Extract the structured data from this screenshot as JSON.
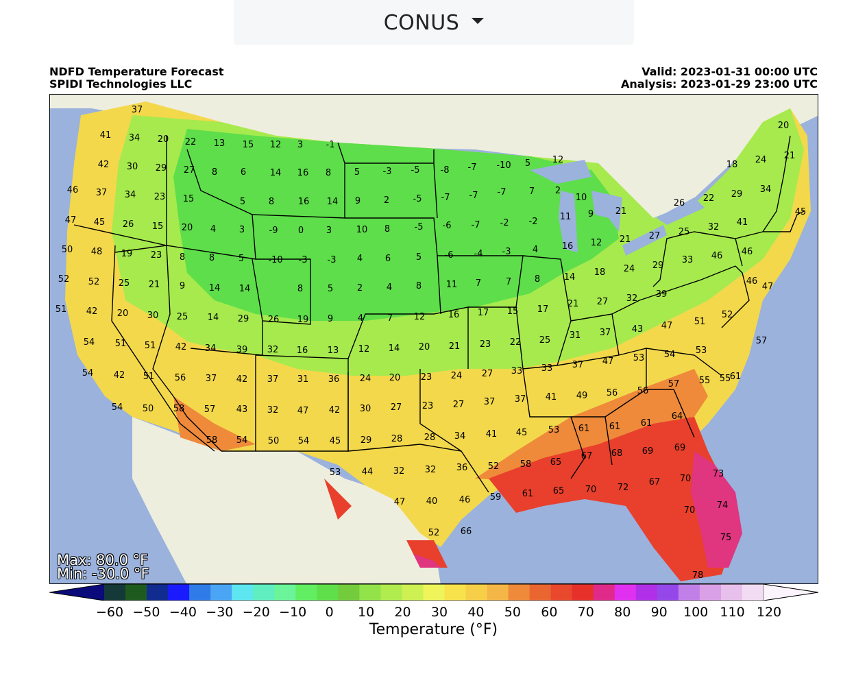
{
  "region_selector": {
    "label": "CONUS"
  },
  "header": {
    "title": "NDFD Temperature Forecast",
    "provider": "SPIDI Technologies LLC",
    "valid": "Valid: 2023-01-31 00:00 UTC",
    "analysis": "Analysis: 2023-01-29 23:00 UTC"
  },
  "stats": {
    "max": "Max: 80.0 °F",
    "min": "Min: -30.0 °F"
  },
  "colorbar": {
    "title": "Temperature (°F)",
    "ticks": [
      "−60",
      "−50",
      "−40",
      "−30",
      "−20",
      "−10",
      "0",
      "10",
      "20",
      "30",
      "40",
      "50",
      "60",
      "70",
      "80",
      "90",
      "100",
      "110",
      "120"
    ],
    "colors": [
      "#0a0a7a",
      "#153838",
      "#1e5a1e",
      "#102c90",
      "#1a1aff",
      "#2f7be8",
      "#4aa6f4",
      "#5ee6f0",
      "#60eec0",
      "#6cf49a",
      "#62ee62",
      "#5fdf4a",
      "#74cc3d",
      "#92e24a",
      "#b0ec4e",
      "#cdf052",
      "#eef45a",
      "#f8e24c",
      "#f6ce48",
      "#f4b646",
      "#ee8a3a",
      "#ea6630",
      "#e8482c",
      "#e6302a",
      "#e02a8a",
      "#e030f0",
      "#b030e8",
      "#9448ea",
      "#c080e8",
      "#daa0e6",
      "#e8c0ec",
      "#f2dcf4",
      "#fcf4fc"
    ],
    "colors_domain": [
      -65,
      120
    ]
  },
  "map_colors": {
    "ocean": "#9ab2dc",
    "land": "#eeeedf",
    "cold_band": "#5dde4a",
    "mid_band": "#a6ea4e",
    "warm_band": "#f3d84c",
    "hot_band": "#ee8a3a",
    "hottest_band": "#e8402c",
    "gulf_band": "#e0357f"
  },
  "points": [
    {
      "t": "37"
    },
    {
      "t": "41"
    },
    {
      "t": "34"
    },
    {
      "t": "20"
    },
    {
      "t": "22"
    },
    {
      "t": "13"
    },
    {
      "t": "15"
    },
    {
      "t": "12"
    },
    {
      "t": "3"
    },
    {
      "t": "-1"
    },
    {
      "t": "42"
    },
    {
      "t": "30"
    },
    {
      "t": "29"
    },
    {
      "t": "27"
    },
    {
      "t": "8"
    },
    {
      "t": "6"
    },
    {
      "t": "14"
    },
    {
      "t": "16"
    },
    {
      "t": "8"
    },
    {
      "t": "5"
    },
    {
      "t": "-3"
    },
    {
      "t": "-5"
    },
    {
      "t": "-8"
    },
    {
      "t": "-7"
    },
    {
      "t": "-10"
    },
    {
      "t": "5"
    },
    {
      "t": "12"
    },
    {
      "t": "46"
    },
    {
      "t": "37"
    },
    {
      "t": "34"
    },
    {
      "t": "23"
    },
    {
      "t": "15"
    },
    {
      "t": "5"
    },
    {
      "t": "8"
    },
    {
      "t": "16"
    },
    {
      "t": "14"
    },
    {
      "t": "9"
    },
    {
      "t": "2"
    },
    {
      "t": "-5"
    },
    {
      "t": "-7"
    },
    {
      "t": "-7"
    },
    {
      "t": "-7"
    },
    {
      "t": "7"
    },
    {
      "t": "2"
    },
    {
      "t": "10"
    },
    {
      "t": "47"
    },
    {
      "t": "45"
    },
    {
      "t": "26"
    },
    {
      "t": "15"
    },
    {
      "t": "20"
    },
    {
      "t": "4"
    },
    {
      "t": "3"
    },
    {
      "t": "-9"
    },
    {
      "t": "0"
    },
    {
      "t": "3"
    },
    {
      "t": "10"
    },
    {
      "t": "8"
    },
    {
      "t": "-5"
    },
    {
      "t": "-6"
    },
    {
      "t": "-7"
    },
    {
      "t": "-2"
    },
    {
      "t": "-2"
    },
    {
      "t": "11"
    },
    {
      "t": "9"
    },
    {
      "t": "21"
    },
    {
      "t": "50"
    },
    {
      "t": "48"
    },
    {
      "t": "19"
    },
    {
      "t": "23"
    },
    {
      "t": "8"
    },
    {
      "t": "8"
    },
    {
      "t": "5"
    },
    {
      "t": "-10"
    },
    {
      "t": "-3"
    },
    {
      "t": "-3"
    },
    {
      "t": "4"
    },
    {
      "t": "6"
    },
    {
      "t": "5"
    },
    {
      "t": "-6"
    },
    {
      "t": "-4"
    },
    {
      "t": "-3"
    },
    {
      "t": "4"
    },
    {
      "t": "16"
    },
    {
      "t": "12"
    },
    {
      "t": "21"
    },
    {
      "t": "27"
    },
    {
      "t": "52"
    },
    {
      "t": "52"
    },
    {
      "t": "25"
    },
    {
      "t": "21"
    },
    {
      "t": "9"
    },
    {
      "t": "14"
    },
    {
      "t": "14"
    },
    {
      "t": "8"
    },
    {
      "t": "5"
    },
    {
      "t": "2"
    },
    {
      "t": "4"
    },
    {
      "t": "8"
    },
    {
      "t": "11"
    },
    {
      "t": "7"
    },
    {
      "t": "7"
    },
    {
      "t": "8"
    },
    {
      "t": "14"
    },
    {
      "t": "18"
    },
    {
      "t": "24"
    },
    {
      "t": "51"
    },
    {
      "t": "42"
    },
    {
      "t": "20"
    },
    {
      "t": "30"
    },
    {
      "t": "25"
    },
    {
      "t": "14"
    },
    {
      "t": "29"
    },
    {
      "t": "26"
    },
    {
      "t": "19"
    },
    {
      "t": "9"
    },
    {
      "t": "4"
    },
    {
      "t": "7"
    },
    {
      "t": "12"
    },
    {
      "t": "16"
    },
    {
      "t": "17"
    },
    {
      "t": "15"
    },
    {
      "t": "17"
    },
    {
      "t": "21"
    },
    {
      "t": "27"
    },
    {
      "t": "32"
    },
    {
      "t": "39"
    },
    {
      "t": "54"
    },
    {
      "t": "51"
    },
    {
      "t": "51"
    },
    {
      "t": "42"
    },
    {
      "t": "34"
    },
    {
      "t": "39"
    },
    {
      "t": "32"
    },
    {
      "t": "16"
    },
    {
      "t": "13"
    },
    {
      "t": "12"
    },
    {
      "t": "14"
    },
    {
      "t": "20"
    },
    {
      "t": "21"
    },
    {
      "t": "23"
    },
    {
      "t": "22"
    },
    {
      "t": "25"
    },
    {
      "t": "31"
    },
    {
      "t": "37"
    },
    {
      "t": "43"
    },
    {
      "t": "47"
    },
    {
      "t": "51"
    },
    {
      "t": "54"
    },
    {
      "t": "42"
    },
    {
      "t": "51"
    },
    {
      "t": "56"
    },
    {
      "t": "37"
    },
    {
      "t": "42"
    },
    {
      "t": "37"
    },
    {
      "t": "31"
    },
    {
      "t": "36"
    },
    {
      "t": "24"
    },
    {
      "t": "20"
    },
    {
      "t": "23"
    },
    {
      "t": "24"
    },
    {
      "t": "27"
    },
    {
      "t": "33"
    },
    {
      "t": "33"
    },
    {
      "t": "37"
    },
    {
      "t": "47"
    },
    {
      "t": "53"
    },
    {
      "t": "54"
    },
    {
      "t": "53"
    },
    {
      "t": "54"
    },
    {
      "t": "50"
    },
    {
      "t": "58"
    },
    {
      "t": "57"
    },
    {
      "t": "43"
    },
    {
      "t": "32"
    },
    {
      "t": "47"
    },
    {
      "t": "42"
    },
    {
      "t": "30"
    },
    {
      "t": "27"
    },
    {
      "t": "23"
    },
    {
      "t": "27"
    },
    {
      "t": "37"
    },
    {
      "t": "37"
    },
    {
      "t": "41"
    },
    {
      "t": "49"
    },
    {
      "t": "56"
    },
    {
      "t": "56"
    },
    {
      "t": "57"
    },
    {
      "t": "55"
    },
    {
      "t": "58"
    },
    {
      "t": "54"
    },
    {
      "t": "50"
    },
    {
      "t": "54"
    },
    {
      "t": "45"
    },
    {
      "t": "29"
    },
    {
      "t": "28"
    },
    {
      "t": "28"
    },
    {
      "t": "34"
    },
    {
      "t": "41"
    },
    {
      "t": "45"
    },
    {
      "t": "53"
    },
    {
      "t": "61"
    },
    {
      "t": "61"
    },
    {
      "t": "61"
    },
    {
      "t": "64"
    },
    {
      "t": "53"
    },
    {
      "t": "44"
    },
    {
      "t": "32"
    },
    {
      "t": "32"
    },
    {
      "t": "36"
    },
    {
      "t": "52"
    },
    {
      "t": "58"
    },
    {
      "t": "65"
    },
    {
      "t": "67"
    },
    {
      "t": "68"
    },
    {
      "t": "69"
    },
    {
      "t": "69"
    },
    {
      "t": "47"
    },
    {
      "t": "40"
    },
    {
      "t": "46"
    },
    {
      "t": "59"
    },
    {
      "t": "61"
    },
    {
      "t": "65"
    },
    {
      "t": "70"
    },
    {
      "t": "72"
    },
    {
      "t": "67"
    },
    {
      "t": "70"
    },
    {
      "t": "73"
    },
    {
      "t": "52"
    },
    {
      "t": "66"
    },
    {
      "t": "70"
    },
    {
      "t": "74"
    },
    {
      "t": "75"
    },
    {
      "t": "78"
    },
    {
      "t": "20"
    },
    {
      "t": "18"
    },
    {
      "t": "24"
    },
    {
      "t": "21"
    },
    {
      "t": "26"
    },
    {
      "t": "22"
    },
    {
      "t": "29"
    },
    {
      "t": "34"
    },
    {
      "t": "41"
    },
    {
      "t": "45"
    },
    {
      "t": "32"
    },
    {
      "t": "25"
    },
    {
      "t": "33"
    },
    {
      "t": "46"
    },
    {
      "t": "46"
    },
    {
      "t": "46"
    },
    {
      "t": "47"
    },
    {
      "t": "52"
    },
    {
      "t": "57"
    },
    {
      "t": "55"
    },
    {
      "t": "61"
    },
    {
      "t": "29"
    }
  ]
}
